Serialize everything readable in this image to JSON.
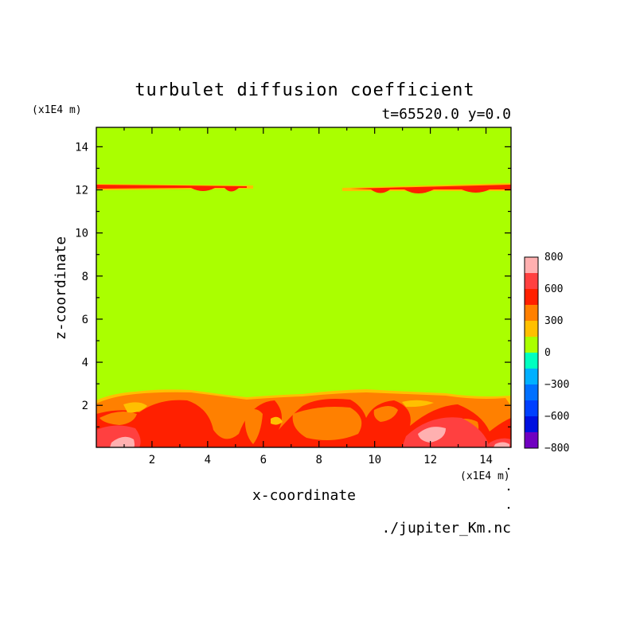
{
  "chart_data": {
    "type": "heatmap",
    "title": "turbulet diffusion coefficient",
    "subtitle": "t=65520.0 y=0.0",
    "xlabel": "x-coordinate",
    "ylabel": "z-coordinate",
    "x_unit_label": "(x1E4 m)",
    "y_unit_label": "(x1E4 m)",
    "footer": "./jupiter_Km.nc",
    "xlim": [
      0.0,
      14.9
    ],
    "ylim": [
      0.05,
      14.9
    ],
    "x_ticks": [
      2,
      4,
      6,
      8,
      10,
      12,
      14
    ],
    "y_ticks": [
      2,
      4,
      6,
      8,
      10,
      12,
      14
    ],
    "background_value_range": [
      0,
      150
    ],
    "colorbar": {
      "ticks": [
        800,
        600,
        300,
        0,
        -300,
        -600,
        -800
      ],
      "levels": [
        {
          "min": 700,
          "max": 800,
          "color": "#ffb0b0"
        },
        {
          "min": 600,
          "max": 700,
          "color": "#ff4040"
        },
        {
          "min": 450,
          "max": 600,
          "color": "#ff2000"
        },
        {
          "min": 300,
          "max": 450,
          "color": "#ff8000"
        },
        {
          "min": 150,
          "max": 300,
          "color": "#ffc000"
        },
        {
          "min": 0,
          "max": 150,
          "color": "#aaff00"
        },
        {
          "min": -150,
          "max": 0,
          "color": "#00ffc0"
        },
        {
          "min": -300,
          "max": -150,
          "color": "#00b0ff"
        },
        {
          "min": -450,
          "max": -300,
          "color": "#0070ff"
        },
        {
          "min": -600,
          "max": -450,
          "color": "#0040ff"
        },
        {
          "min": -700,
          "max": -600,
          "color": "#0010e0"
        },
        {
          "min": -800,
          "max": -700,
          "color": "#7000c0"
        }
      ]
    },
    "features": [
      {
        "name": "upper layer west",
        "value_range": [
          450,
          600
        ],
        "x": [
          0.0,
          5.5
        ],
        "z": [
          12.1,
          12.3
        ]
      },
      {
        "name": "upper layer east",
        "value_range": [
          450,
          600
        ],
        "x": [
          9.0,
          14.9
        ],
        "z": [
          11.9,
          12.3
        ]
      },
      {
        "name": "boundary layer",
        "value_range": [
          150,
          800
        ],
        "x": [
          0.0,
          14.9
        ],
        "z": [
          0.05,
          2.7
        ]
      }
    ]
  },
  "colors": {
    "background_field": "#aaff00",
    "strong_positive": "#ff2000",
    "moderate_positive": "#ff8000",
    "weak_positive": "#ffc000",
    "peak": "#ffb0b0"
  }
}
